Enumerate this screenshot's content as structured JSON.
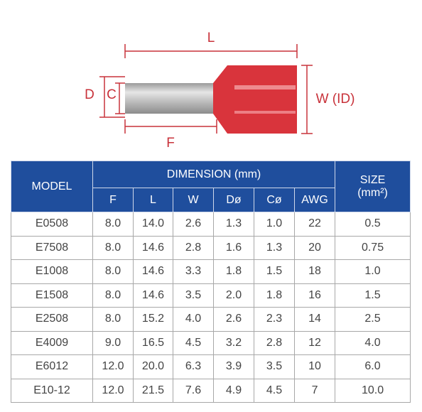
{
  "diagram": {
    "labels": {
      "l": "L",
      "d": "D",
      "c": "C",
      "w": "W (ID)",
      "f": "F"
    }
  },
  "table": {
    "header": {
      "model": "MODEL",
      "dimension": "DIMENSION (mm)",
      "size": "SIZE",
      "size_unit": "(mm²)",
      "columns": [
        "F",
        "L",
        "W",
        "Dø",
        "Cø",
        "AWG"
      ]
    },
    "rows": [
      [
        "E0508",
        "8.0",
        "14.0",
        "2.6",
        "1.3",
        "1.0",
        "22",
        "0.5"
      ],
      [
        "E7508",
        "8.0",
        "14.6",
        "2.8",
        "1.6",
        "1.3",
        "20",
        "0.75"
      ],
      [
        "E1008",
        "8.0",
        "14.6",
        "3.3",
        "1.8",
        "1.5",
        "18",
        "1.0"
      ],
      [
        "E1508",
        "8.0",
        "14.6",
        "3.5",
        "2.0",
        "1.8",
        "16",
        "1.5"
      ],
      [
        "E2508",
        "8.0",
        "15.2",
        "4.0",
        "2.6",
        "2.3",
        "14",
        "2.5"
      ],
      [
        "E4009",
        "9.0",
        "16.5",
        "4.5",
        "3.2",
        "2.8",
        "12",
        "4.0"
      ],
      [
        "E6012",
        "12.0",
        "20.0",
        "6.3",
        "3.9",
        "3.5",
        "10",
        "6.0"
      ],
      [
        "E10-12",
        "12.0",
        "21.5",
        "7.6",
        "4.9",
        "4.5",
        "7",
        "10.0"
      ]
    ]
  }
}
